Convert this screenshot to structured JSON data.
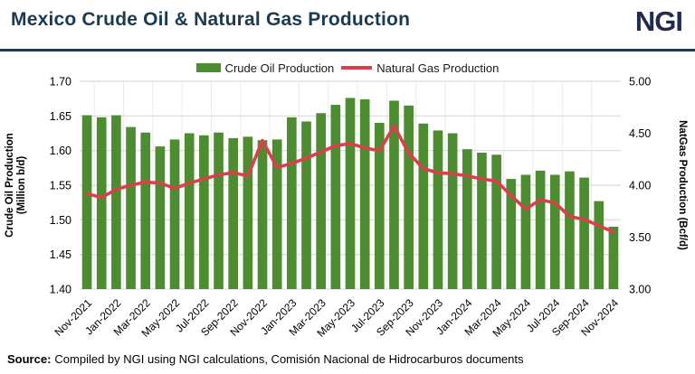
{
  "header": {
    "title": "Mexico Crude Oil & Natural Gas Production",
    "logo_text": "NGI"
  },
  "legend": {
    "crude_label": "Crude Oil Production",
    "gas_label": "Natural Gas Production"
  },
  "source": {
    "prefix": "Source:",
    "text": "Compiled by NGI using NGI calculations, Comisión Nacional de Hidrocarburos documents"
  },
  "colors": {
    "title": "#1a3a52",
    "logo": "#1f2b50",
    "rule": "#1a3a52",
    "bar": "#4e8c31",
    "line": "#d8404c",
    "grid": "#d9d9d9",
    "grid_vertical": "#ececec",
    "tick_text": "#000000"
  },
  "chart_data": {
    "type": "bar",
    "subtype": "bar+line dual-axis combo",
    "title": "Mexico Crude Oil & Natural Gas Production",
    "legend_position": "top-center",
    "grid": "horizontal major gridlines, faint vertical gridlines",
    "categories": [
      "Nov-2021",
      "Dec-2021",
      "Jan-2022",
      "Feb-2022",
      "Mar-2022",
      "Apr-2022",
      "May-2022",
      "Jun-2022",
      "Jul-2022",
      "Aug-2022",
      "Sep-2022",
      "Oct-2022",
      "Nov-2022",
      "Dec-2022",
      "Jan-2023",
      "Feb-2023",
      "Mar-2023",
      "Apr-2023",
      "May-2023",
      "Jun-2023",
      "Jul-2023",
      "Aug-2023",
      "Sep-2023",
      "Oct-2023",
      "Nov-2023",
      "Dec-2023",
      "Jan-2024",
      "Feb-2024",
      "Mar-2024",
      "Apr-2024",
      "May-2024",
      "Jun-2024",
      "Jul-2024",
      "Aug-2024",
      "Sep-2024",
      "Oct-2024",
      "Nov-2024"
    ],
    "x_tick_labels": [
      "Nov-2021",
      "Jan-2022",
      "Mar-2022",
      "May-2022",
      "Jul-2022",
      "Sep-2022",
      "Nov-2022",
      "Jan-2023",
      "Mar-2023",
      "May-2023",
      "Jul-2023",
      "Sep-2023",
      "Nov-2023",
      "Jan-2024",
      "Mar-2024",
      "May-2024",
      "Jul-2024",
      "Sep-2024",
      "Nov-2024"
    ],
    "series": [
      {
        "name": "Crude Oil Production",
        "type": "bar",
        "axis": "left",
        "unit": "Million b/d",
        "values": [
          1.651,
          1.648,
          1.651,
          1.634,
          1.626,
          1.606,
          1.616,
          1.625,
          1.622,
          1.626,
          1.618,
          1.62,
          1.615,
          1.616,
          1.648,
          1.642,
          1.654,
          1.666,
          1.676,
          1.674,
          1.64,
          1.672,
          1.665,
          1.639,
          1.629,
          1.625,
          1.602,
          1.597,
          1.594,
          1.559,
          1.565,
          1.571,
          1.565,
          1.57,
          1.561,
          1.527,
          1.49
        ]
      },
      {
        "name": "Natural Gas Production",
        "type": "line",
        "axis": "right",
        "unit": "Bcf/d",
        "values": [
          3.92,
          3.88,
          3.96,
          4.0,
          4.03,
          4.02,
          3.97,
          4.02,
          4.06,
          4.1,
          4.12,
          4.09,
          4.43,
          4.17,
          4.21,
          4.26,
          4.32,
          4.38,
          4.4,
          4.36,
          4.33,
          4.57,
          4.31,
          4.16,
          4.12,
          4.11,
          4.09,
          4.06,
          4.04,
          3.9,
          3.77,
          3.86,
          3.83,
          3.7,
          3.67,
          3.61,
          3.55
        ]
      }
    ],
    "left_axis": {
      "title_line1": "Crude Oil Production",
      "title_line2": "(Million b/d)",
      "min": 1.4,
      "max": 1.7,
      "ticks": [
        1.7,
        1.65,
        1.6,
        1.55,
        1.5,
        1.45,
        1.4
      ]
    },
    "right_axis": {
      "title": "NatGas Production (Bcf/d)",
      "min": 3.0,
      "max": 5.0,
      "ticks": [
        5.0,
        4.5,
        4.0,
        3.5,
        3.0
      ]
    }
  }
}
